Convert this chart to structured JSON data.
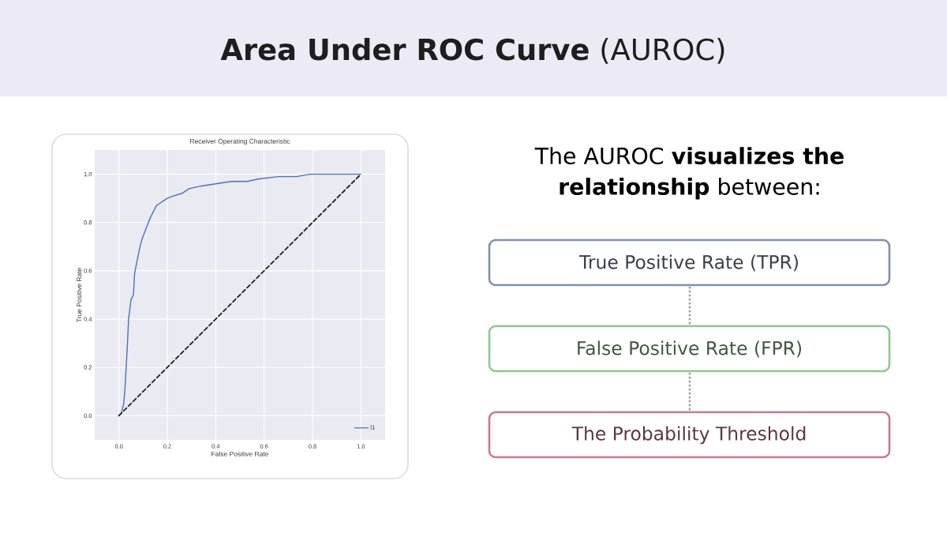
{
  "chart_data": [
    {
      "type": "line",
      "title": "**Area Under ROC Curve** (AUROC)",
      "subtitle": "Receiver Operating Characteristic",
      "xlabel": "False Positive Rate",
      "ylabel": "True Positive Rate",
      "xlim": [
        -0.1,
        1.1
      ],
      "ylim": [
        -0.1,
        1.1
      ],
      "xticks": [
        {
          "value": 0,
          "label": "0.0"
        },
        0.2,
        0.4,
        0.6,
        0.8,
        {
          "value": 1,
          "label": "1.0"
        }
      ],
      "yticks": [
        {
          "value": 0,
          "label": "0.0"
        },
        0.2,
        0.4,
        0.6,
        0.8,
        {
          "value": 1,
          "label": "1.0"
        }
      ],
      "grid": true,
      "legend": "bottom right",
      "series": [
        {
          "name": "l1",
          "color": "#4c72b0",
          "line_style": "solid",
          "x": [
            0,
            0.01,
            0.02,
            0.025,
            0.03,
            0.035,
            0.04,
            0.045,
            0.05,
            0.06,
            0.065,
            0.075,
            0.085,
            0.095,
            0.11,
            0.13,
            0.145,
            0.155,
            0.17,
            0.2,
            0.225,
            0.26,
            0.29,
            0.335,
            0.4,
            0.465,
            0.53,
            0.575,
            0.66,
            0.735,
            0.79,
            0.94,
            0.965,
            1
          ],
          "values": [
            0,
            0.01,
            0.05,
            0.11,
            0.2,
            0.29,
            0.4,
            0.44,
            0.48,
            0.5,
            0.59,
            0.64,
            0.69,
            0.73,
            0.77,
            0.82,
            0.85,
            0.87,
            0.88,
            0.9,
            0.91,
            0.92,
            0.94,
            0.95,
            0.96,
            0.97,
            0.97,
            0.98,
            0.99,
            0.99,
            1.0,
            1.0,
            1.0,
            1.0
          ]
        },
        {
          "color": "#262626",
          "line_style": "dashed",
          "x": [
            0,
            1
          ],
          "values": [
            0,
            1
          ]
        }
      ]
    },
    {
      "type": "other",
      "title": "The AUROC **visualizes the relationship** between:",
      "annotations": [
        "True Positive Rate (TPR)",
        "False Positive Rate (FPR)",
        "The Probability Threshold"
      ],
      "colors": [
        "#8390a6",
        "#93c493",
        "#c97a92"
      ]
    }
  ]
}
